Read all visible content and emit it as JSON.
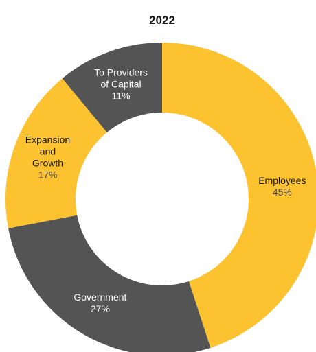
{
  "chart_data": {
    "type": "pie",
    "variant": "donut",
    "title": "2022",
    "slices": [
      {
        "label": "Employees",
        "value": 45,
        "value_label": "45%",
        "color": "#FDC230",
        "text_color": "#1a1a1a",
        "value_color": "#4a4a4a"
      },
      {
        "label": "Government",
        "value": 27,
        "value_label": "27%",
        "color": "#545454",
        "text_color": "#ffffff",
        "value_color": "#ffffff"
      },
      {
        "label": "Expansion and Growth",
        "value": 17,
        "value_label": "17%",
        "color": "#FDC230",
        "text_color": "#1a1a1a",
        "value_color": "#4a4a4a"
      },
      {
        "label": "To Providers of Capital",
        "value": 11,
        "value_label": "11%",
        "color": "#545454",
        "text_color": "#ffffff",
        "value_color": "#ffffff"
      }
    ],
    "start": "12 o'clock",
    "direction": "clockwise",
    "legend": "none"
  }
}
